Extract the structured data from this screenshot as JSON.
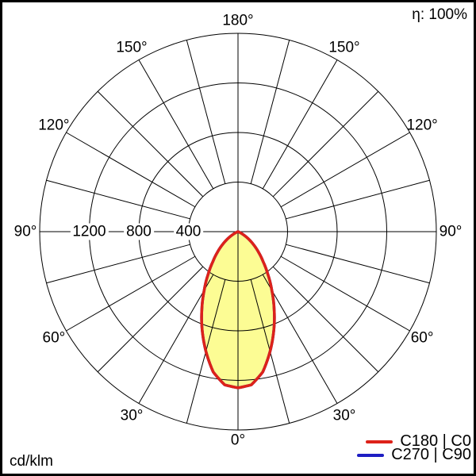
{
  "header": {
    "efficiency": "η: 100%"
  },
  "footer": {
    "unit": "cd/klm"
  },
  "chart_data": {
    "type": "polar",
    "subtype": "luminous-intensity-distribution",
    "unit": "cd/klm",
    "efficiency": "η: 100%",
    "grid_color": "#000000",
    "background_color": "#ffffff",
    "radial_axis": {
      "rings": [
        400,
        800,
        1200,
        1600
      ],
      "labeled_rings": [
        "1200",
        "800",
        "400"
      ],
      "max_value": 1600
    },
    "angle_axis": {
      "zero_position": "bottom",
      "grid_step_deg": 15,
      "label_step_deg": 30,
      "labels": [
        "0°",
        "30°",
        "60°",
        "90°",
        "120°",
        "150°",
        "180°"
      ]
    },
    "series": [
      {
        "name": "C180 | C0",
        "color": "#dd2219",
        "fill": "#fcfc94",
        "angles_deg": [
          0,
          5,
          10,
          15,
          20,
          25,
          30,
          35,
          40,
          45,
          50,
          55,
          60,
          65,
          70,
          75,
          80,
          85,
          90
        ],
        "values_cd_per_klm": [
          1260,
          1240,
          1150,
          1000,
          845,
          690,
          545,
          420,
          315,
          235,
          165,
          105,
          55,
          20,
          5,
          0,
          0,
          0,
          0
        ]
      },
      {
        "name": "C270 | C90",
        "color": "#1e1ec3",
        "fill": null,
        "angles_deg": [
          0,
          5,
          10,
          15,
          20,
          25,
          30,
          35,
          40,
          45,
          50,
          55,
          60,
          65,
          70,
          75,
          80,
          85,
          90
        ],
        "values_cd_per_klm": [
          1260,
          1240,
          1150,
          1000,
          845,
          690,
          545,
          420,
          315,
          235,
          165,
          105,
          55,
          20,
          5,
          0,
          0,
          0,
          0
        ]
      }
    ]
  }
}
